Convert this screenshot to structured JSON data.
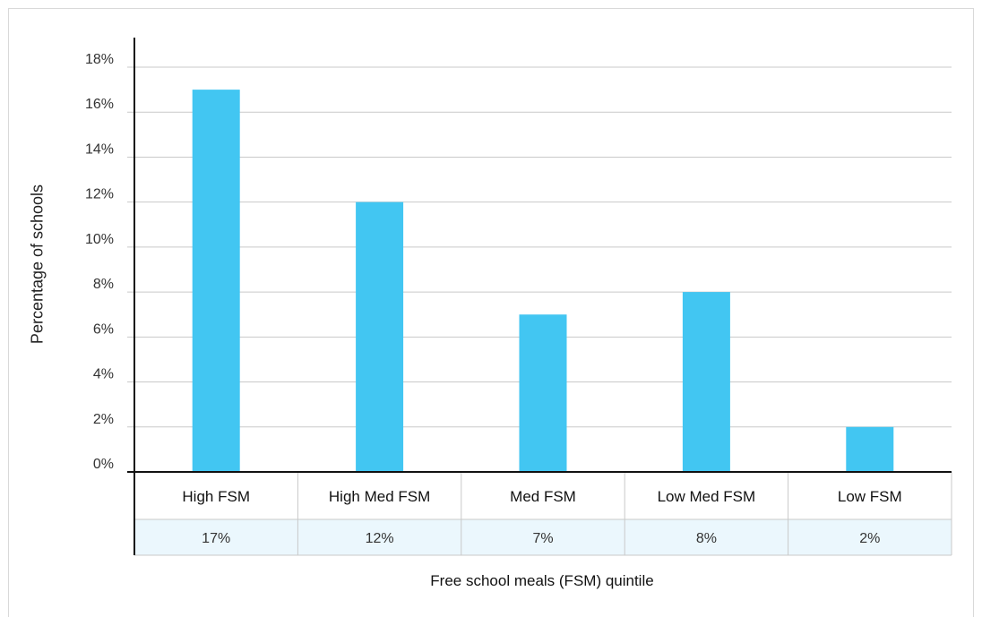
{
  "chart_data": {
    "type": "bar",
    "title": "",
    "xlabel": "Free school meals (FSM) quintile",
    "ylabel": "Percentage of schools",
    "categories": [
      "High FSM",
      "High Med FSM",
      "Med FSM",
      "Low Med FSM",
      "Low FSM"
    ],
    "values": [
      17,
      12,
      7,
      8,
      2
    ],
    "value_labels": [
      "17%",
      "12%",
      "7%",
      "8%",
      "2%"
    ],
    "y_ticks": [
      "0%",
      "2%",
      "4%",
      "6%",
      "8%",
      "10%",
      "12%",
      "14%",
      "16%",
      "18%"
    ],
    "ylim": [
      0,
      18
    ],
    "grid": true,
    "legend": "none",
    "colors": {
      "bar": "#42c6f2",
      "gridline": "#c9c9c9",
      "axis": "#111111",
      "table_value_row": "#ebf7fd",
      "table_border": "#c9c9c9"
    }
  }
}
